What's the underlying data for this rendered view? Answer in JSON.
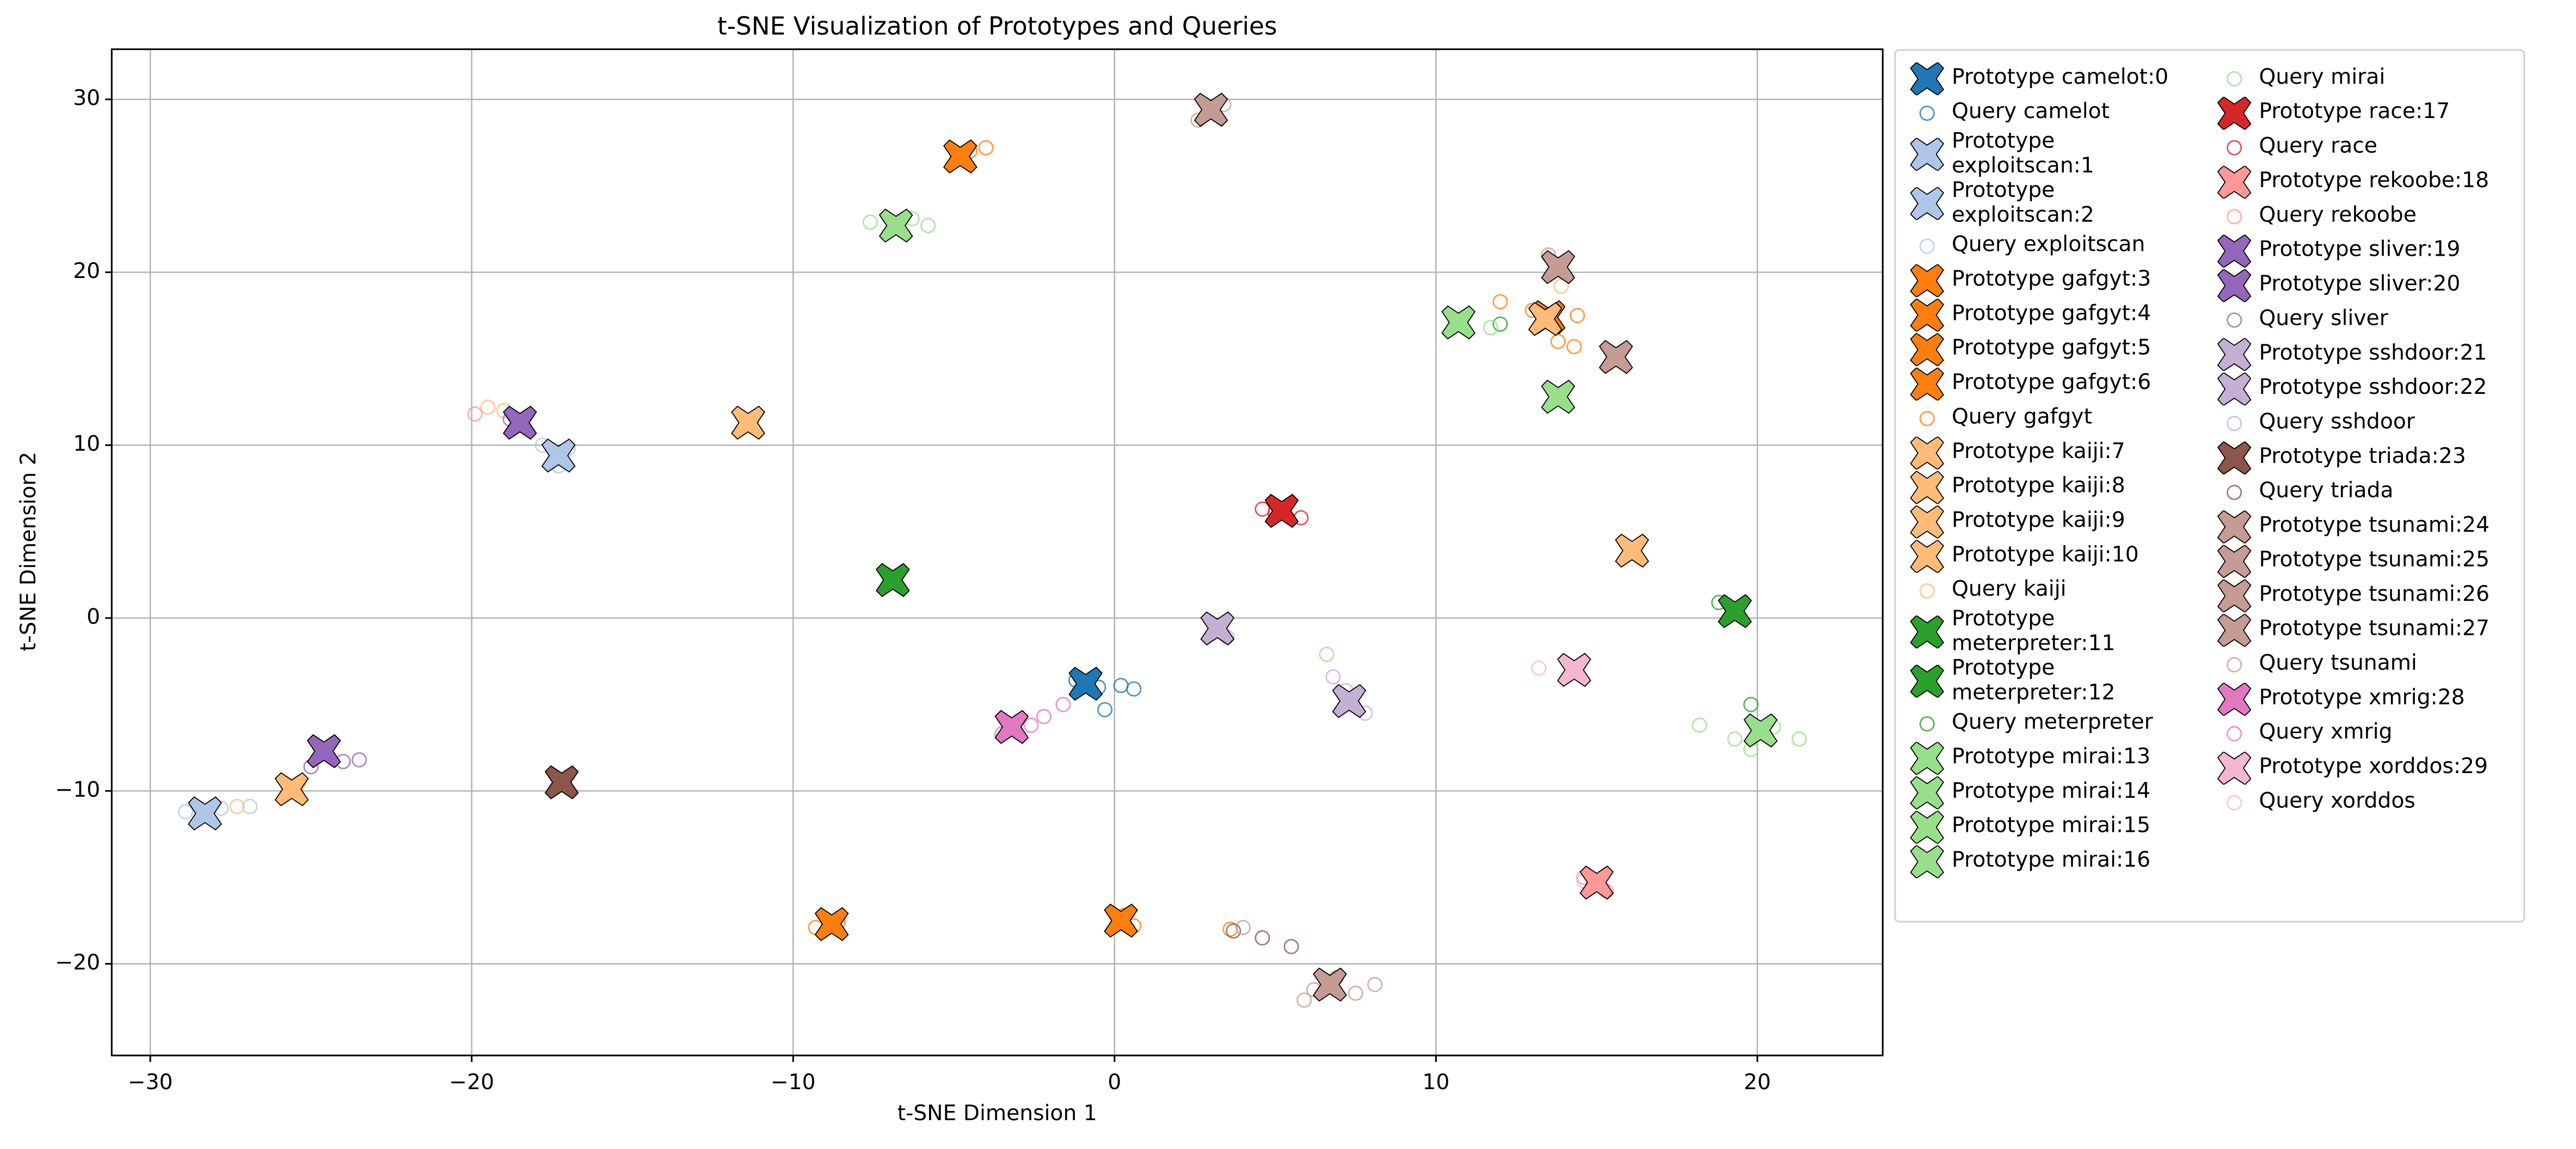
{
  "chart_data": {
    "type": "scatter",
    "title": "t-SNE Visualization of Prototypes and Queries",
    "x_label": "t-SNE Dimension 1",
    "y_label": "t-SNE Dimension 2",
    "xlim": [
      -31.2,
      23.9
    ],
    "ylim": [
      -25.3,
      32.9
    ],
    "xticks": [
      {
        "value": -30,
        "label": "−30"
      },
      {
        "value": -20,
        "label": "−20"
      },
      {
        "value": -10,
        "label": "−10"
      },
      0,
      10,
      20
    ],
    "yticks": [
      {
        "value": -20,
        "label": "−20"
      },
      {
        "value": -10,
        "label": "−10"
      },
      0,
      10,
      20,
      30
    ],
    "grid": true,
    "legend": "outside upper right",
    "legend_columns": 2,
    "series": [
      {
        "name": "Prototype camelot:0",
        "color": "#1f77b4",
        "marker": "X",
        "x": [
          -0.9
        ],
        "y": [
          -3.8
        ]
      },
      {
        "name": "Query camelot",
        "color": "#1f77b4",
        "marker": "o",
        "x": [
          -0.5,
          0.2,
          0.6,
          -0.3,
          -1.2
        ],
        "y": [
          -4.0,
          -3.9,
          -4.1,
          -5.3,
          -3.6
        ]
      },
      {
        "name": "Prototype exploitscan:1",
        "color": "#aec7e8",
        "marker": "X",
        "x": [
          -17.3
        ],
        "y": [
          9.4
        ]
      },
      {
        "name": "Prototype exploitscan:2",
        "color": "#aec7e8",
        "marker": "X",
        "x": [
          -28.3
        ],
        "y": [
          -11.3
        ]
      },
      {
        "name": "Query exploitscan",
        "color": "#aec7e8",
        "marker": "o",
        "x": [
          -17.8,
          -17.3,
          -17.0,
          -28.9,
          -27.8,
          -26.9
        ],
        "y": [
          10.0,
          8.8,
          9.8,
          -11.2,
          -11.0,
          -10.9
        ]
      },
      {
        "name": "Prototype gafgyt:3",
        "color": "#ff7f0e",
        "marker": "X",
        "x": [
          -4.8
        ],
        "y": [
          26.7
        ]
      },
      {
        "name": "Prototype gafgyt:4",
        "color": "#ff7f0e",
        "marker": "X",
        "x": [
          13.5
        ],
        "y": [
          17.4
        ]
      },
      {
        "name": "Prototype gafgyt:5",
        "color": "#ff7f0e",
        "marker": "X",
        "x": [
          -8.8
        ],
        "y": [
          -17.7
        ]
      },
      {
        "name": "Prototype gafgyt:6",
        "color": "#ff7f0e",
        "marker": "X",
        "x": [
          0.2
        ],
        "y": [
          -17.5
        ]
      },
      {
        "name": "Query gafgyt",
        "color": "#ff7f0e",
        "marker": "o",
        "x": [
          -4.5,
          -4.0,
          13.8,
          14.3,
          13.0,
          -9.3,
          -8.6,
          0.6,
          0.3,
          3.6,
          12.0,
          14.4
        ],
        "y": [
          27.0,
          27.2,
          16.0,
          15.7,
          17.8,
          -17.9,
          -17.6,
          -17.8,
          -17.2,
          -18.0,
          18.3,
          17.5
        ]
      },
      {
        "name": "Prototype kaiji:7",
        "color": "#ffbb78",
        "marker": "X",
        "x": [
          -11.4
        ],
        "y": [
          11.3
        ]
      },
      {
        "name": "Prototype kaiji:8",
        "color": "#ffbb78",
        "marker": "X",
        "x": [
          16.1
        ],
        "y": [
          3.9
        ]
      },
      {
        "name": "Prototype kaiji:9",
        "color": "#ffbb78",
        "marker": "X",
        "x": [
          -25.6
        ],
        "y": [
          -9.9
        ]
      },
      {
        "name": "Prototype kaiji:10",
        "color": "#ffbb78",
        "marker": "X",
        "x": [
          13.4
        ],
        "y": [
          17.3
        ]
      },
      {
        "name": "Query kaiji",
        "color": "#ffbb78",
        "marker": "o",
        "x": [
          -25.4,
          -27.3,
          -19.0,
          -19.5,
          13.9
        ],
        "y": [
          -9.6,
          -10.9,
          12.0,
          12.2,
          19.2
        ]
      },
      {
        "name": "Prototype meterpreter:11",
        "color": "#2ca02c",
        "marker": "X",
        "x": [
          -6.9
        ],
        "y": [
          2.2
        ]
      },
      {
        "name": "Prototype meterpreter:12",
        "color": "#2ca02c",
        "marker": "X",
        "x": [
          19.3
        ],
        "y": [
          0.4
        ]
      },
      {
        "name": "Query meterpreter",
        "color": "#2ca02c",
        "marker": "o",
        "x": [
          18.8,
          19.8,
          12.0
        ],
        "y": [
          0.9,
          -5.0,
          17.0
        ]
      },
      {
        "name": "Prototype mirai:13",
        "color": "#98df8a",
        "marker": "X",
        "x": [
          -6.8
        ],
        "y": [
          22.7
        ]
      },
      {
        "name": "Prototype mirai:14",
        "color": "#98df8a",
        "marker": "X",
        "x": [
          10.7
        ],
        "y": [
          17.1
        ]
      },
      {
        "name": "Prototype mirai:15",
        "color": "#98df8a",
        "marker": "X",
        "x": [
          13.8
        ],
        "y": [
          12.8
        ]
      },
      {
        "name": "Prototype mirai:16",
        "color": "#98df8a",
        "marker": "X",
        "x": [
          20.1
        ],
        "y": [
          -6.5
        ]
      },
      {
        "name": "Query mirai",
        "color": "#98df8a",
        "marker": "o",
        "x": [
          -6.3,
          -7.6,
          -5.8,
          19.3,
          19.8,
          20.5,
          21.3,
          18.2,
          6.6,
          11.7
        ],
        "y": [
          23.1,
          22.9,
          22.7,
          -7.0,
          -7.6,
          -6.3,
          -7.0,
          -6.2,
          -2.1,
          16.8
        ]
      },
      {
        "name": "Prototype race:17",
        "color": "#d62728",
        "marker": "X",
        "x": [
          5.2
        ],
        "y": [
          6.2
        ]
      },
      {
        "name": "Query race",
        "color": "#d62728",
        "marker": "o",
        "x": [
          5.0,
          5.8,
          4.6
        ],
        "y": [
          6.1,
          5.8,
          6.3
        ]
      },
      {
        "name": "Prototype rekoobe:18",
        "color": "#ff9896",
        "marker": "X",
        "x": [
          15.0
        ],
        "y": [
          -15.3
        ]
      },
      {
        "name": "Query rekoobe",
        "color": "#ff9896",
        "marker": "o",
        "x": [
          -19.9,
          14.6,
          15.3
        ],
        "y": [
          11.8,
          -15.0,
          -15.8
        ]
      },
      {
        "name": "Prototype sliver:19",
        "color": "#9467bd",
        "marker": "X",
        "x": [
          -18.5
        ],
        "y": [
          11.3
        ]
      },
      {
        "name": "Prototype sliver:20",
        "color": "#9467bd",
        "marker": "X",
        "x": [
          -24.6
        ],
        "y": [
          -7.7
        ]
      },
      {
        "name": "Query sliver",
        "color": "#9467bd",
        "marker": "o",
        "x": [
          -18.8,
          -24.0,
          -23.5,
          -25.0
        ],
        "y": [
          11.5,
          -8.3,
          -8.2,
          -8.6
        ]
      },
      {
        "name": "Prototype sshdoor:21",
        "color": "#c5b0d5",
        "marker": "X",
        "x": [
          3.2
        ],
        "y": [
          -0.6
        ]
      },
      {
        "name": "Prototype sshdoor:22",
        "color": "#c5b0d5",
        "marker": "X",
        "x": [
          7.3
        ],
        "y": [
          -4.8
        ]
      },
      {
        "name": "Query sshdoor",
        "color": "#c5b0d5",
        "marker": "o",
        "x": [
          3.5,
          7.8,
          6.8,
          7.2
        ],
        "y": [
          -1.1,
          -5.5,
          -3.4,
          -4.2
        ]
      },
      {
        "name": "Prototype triada:23",
        "color": "#8c564b",
        "marker": "X",
        "x": [
          -17.2
        ],
        "y": [
          -9.5
        ]
      },
      {
        "name": "Query triada",
        "color": "#8c564b",
        "marker": "o",
        "x": [
          4.6,
          5.5,
          3.7
        ],
        "y": [
          -18.5,
          -19.0,
          -18.1
        ]
      },
      {
        "name": "Prototype tsunami:24",
        "color": "#c49c94",
        "marker": "X",
        "x": [
          3.0
        ],
        "y": [
          29.4
        ]
      },
      {
        "name": "Prototype tsunami:25",
        "color": "#c49c94",
        "marker": "X",
        "x": [
          13.8
        ],
        "y": [
          20.3
        ]
      },
      {
        "name": "Prototype tsunami:26",
        "color": "#c49c94",
        "marker": "X",
        "x": [
          15.6
        ],
        "y": [
          15.1
        ]
      },
      {
        "name": "Prototype tsunami:27",
        "color": "#c49c94",
        "marker": "X",
        "x": [
          6.7
        ],
        "y": [
          -21.2
        ]
      },
      {
        "name": "Query tsunami",
        "color": "#c49c94",
        "marker": "o",
        "x": [
          2.6,
          3.4,
          13.5,
          6.9,
          7.5,
          6.2,
          8.1,
          5.9,
          4.0
        ],
        "y": [
          28.8,
          29.7,
          21.0,
          -20.8,
          -21.7,
          -21.5,
          -21.2,
          -22.1,
          -17.9
        ]
      },
      {
        "name": "Prototype xmrig:28",
        "color": "#e377c2",
        "marker": "X",
        "x": [
          -3.2
        ],
        "y": [
          -6.3
        ]
      },
      {
        "name": "Query xmrig",
        "color": "#e377c2",
        "marker": "o",
        "x": [
          -3.5,
          -2.6,
          -2.2,
          -1.6
        ],
        "y": [
          -6.7,
          -6.2,
          -5.7,
          -5.0
        ]
      },
      {
        "name": "Prototype xorddos:29",
        "color": "#f7b6d2",
        "marker": "X",
        "x": [
          14.3
        ],
        "y": [
          -3.0
        ]
      },
      {
        "name": "Query xorddos",
        "color": "#f7b6d2",
        "marker": "o",
        "x": [
          13.2,
          14.6
        ],
        "y": [
          -2.9,
          -15.2
        ]
      }
    ]
  }
}
